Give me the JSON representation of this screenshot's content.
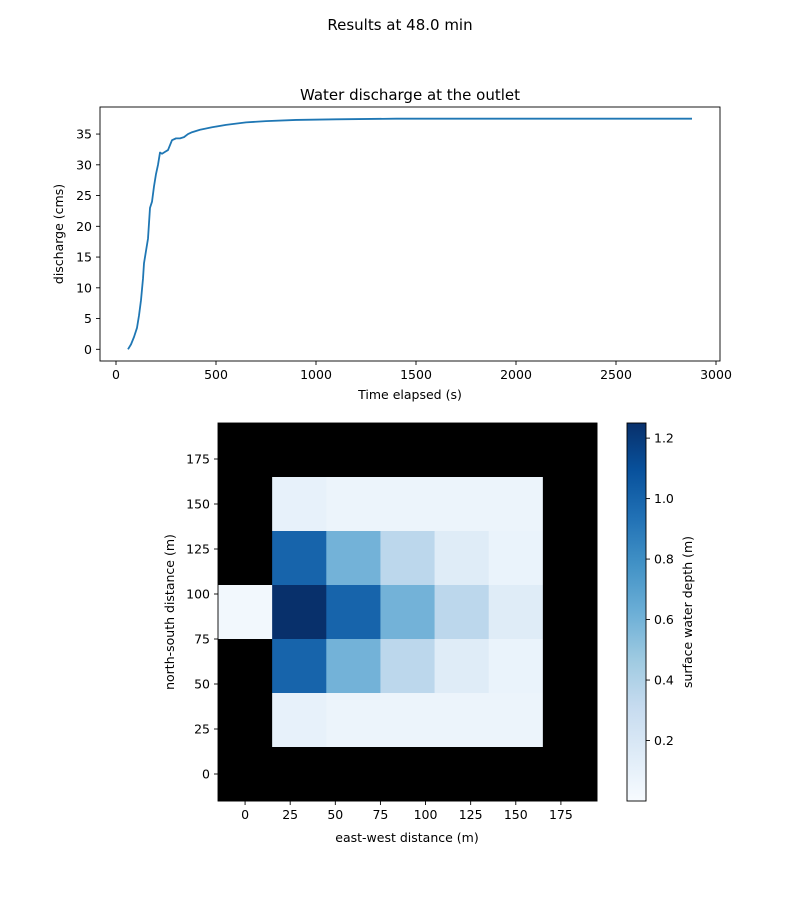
{
  "figure": {
    "suptitle": "Results at 48.0 min"
  },
  "chart_data": [
    {
      "type": "line",
      "title": "Water discharge at the outlet",
      "xlabel": "Time elapsed (s)",
      "ylabel": "discharge (cms)",
      "xlim": [
        -80,
        3020
      ],
      "ylim": [
        -1.9,
        39.4
      ],
      "xticks": [
        0,
        500,
        1000,
        1500,
        2000,
        2500,
        3000
      ],
      "yticks": [
        0,
        5,
        10,
        15,
        20,
        25,
        30,
        35
      ],
      "grid": false,
      "color": "#1f77b4",
      "series": [
        {
          "x": [
            60,
            75,
            90,
            105,
            115,
            125,
            135,
            140,
            150,
            160,
            170,
            180,
            190,
            200,
            210,
            220,
            230,
            240,
            250,
            260,
            280,
            300,
            320,
            340,
            360,
            380,
            420,
            480,
            550,
            650,
            750,
            900,
            1100,
            1400,
            1800,
            2200,
            2600,
            2880
          ],
          "y": [
            0,
            0.8,
            2,
            3.5,
            5.5,
            8,
            11.5,
            14,
            16,
            18,
            23,
            24,
            26.5,
            28.5,
            30,
            32,
            31.8,
            32,
            32.2,
            32.4,
            34,
            34.3,
            34.3,
            34.5,
            35,
            35.3,
            35.7,
            36.1,
            36.5,
            36.9,
            37.1,
            37.3,
            37.4,
            37.5,
            37.5,
            37.5,
            37.5,
            37.5
          ]
        }
      ]
    },
    {
      "type": "heatmap",
      "xlabel": "east-west distance (m)",
      "ylabel": "north-south distance (m)",
      "xlim": [
        -15,
        195
      ],
      "ylim": [
        -15,
        195
      ],
      "xticks": [
        0,
        25,
        50,
        75,
        100,
        125,
        150,
        175
      ],
      "yticks": [
        0,
        25,
        50,
        75,
        100,
        125,
        150,
        175
      ],
      "cell_size": 30,
      "x_centers": [
        0,
        30,
        60,
        90,
        120,
        150,
        180
      ],
      "y_centers": [
        180,
        150,
        120,
        90,
        60,
        30,
        0
      ],
      "masked_color": "#000000",
      "colormap": "Blues",
      "vmin": 0.0,
      "vmax": 1.25,
      "values": [
        [
          null,
          null,
          null,
          null,
          null,
          null,
          null
        ],
        [
          null,
          0.1,
          0.07,
          0.07,
          0.07,
          0.07,
          null
        ],
        [
          null,
          1.0,
          0.6,
          0.35,
          0.15,
          0.08,
          null
        ],
        [
          0.03,
          1.25,
          1.0,
          0.6,
          0.35,
          0.15,
          null
        ],
        [
          null,
          1.0,
          0.6,
          0.35,
          0.15,
          0.08,
          null
        ],
        [
          null,
          0.1,
          0.07,
          0.07,
          0.07,
          0.07,
          null
        ],
        [
          null,
          null,
          null,
          null,
          null,
          null,
          null
        ]
      ],
      "colorbar": {
        "label": "surface water depth (m)",
        "ticks": [
          0.2,
          0.4,
          0.6,
          0.8,
          1.0,
          1.2
        ]
      }
    }
  ]
}
